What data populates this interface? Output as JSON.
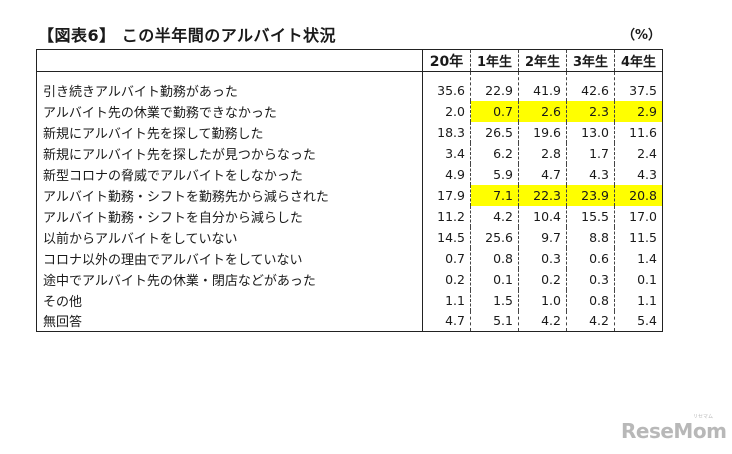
{
  "caption": "【図表6】 この半年間のアルバイト状況",
  "unit": "（%）",
  "columns": [
    "20年",
    "1年生",
    "2年生",
    "3年生",
    "4年生"
  ],
  "rows": [
    {
      "label": "引き続きアルバイト勤務があった",
      "values": [
        "35.6",
        "22.9",
        "41.9",
        "42.6",
        "37.5"
      ]
    },
    {
      "label": "アルバイト先の休業で勤務できなかった",
      "values": [
        "2.0",
        "0.7",
        "2.6",
        "2.3",
        "2.9"
      ]
    },
    {
      "label": "新規にアルバイト先を探して勤務した",
      "values": [
        "18.3",
        "26.5",
        "19.6",
        "13.0",
        "11.6"
      ]
    },
    {
      "label": "新規にアルバイト先を探したが見つからなった",
      "values": [
        "3.4",
        "6.2",
        "2.8",
        "1.7",
        "2.4"
      ]
    },
    {
      "label": "新型コロナの脅威でアルバイトをしなかった",
      "values": [
        "4.9",
        "5.9",
        "4.7",
        "4.3",
        "4.3"
      ]
    },
    {
      "label": "アルバイト勤務・シフトを勤務先から減らされた",
      "values": [
        "17.9",
        "7.1",
        "22.3",
        "23.9",
        "20.8"
      ]
    },
    {
      "label": "アルバイト勤務・シフトを自分から減らした",
      "values": [
        "11.2",
        "4.2",
        "10.4",
        "15.5",
        "17.0"
      ]
    },
    {
      "label": "以前からアルバイトをしていない",
      "values": [
        "14.5",
        "25.6",
        "9.7",
        "8.8",
        "11.5"
      ]
    },
    {
      "label": "コロナ以外の理由でアルバイトをしていない",
      "values": [
        "0.7",
        "0.8",
        "0.3",
        "0.6",
        "1.4"
      ]
    },
    {
      "label": "途中でアルバイト先の休業・閉店などがあった",
      "values": [
        "0.2",
        "0.1",
        "0.2",
        "0.3",
        "0.1"
      ]
    },
    {
      "label": "その他",
      "values": [
        "1.1",
        "1.5",
        "1.0",
        "0.8",
        "1.1"
      ]
    },
    {
      "label": "無回答",
      "values": [
        "4.7",
        "5.1",
        "4.2",
        "4.2",
        "5.4"
      ]
    }
  ],
  "highlight_color": "#ffff00",
  "logo": "ReseMom",
  "logo_ruby": "リセマム"
}
